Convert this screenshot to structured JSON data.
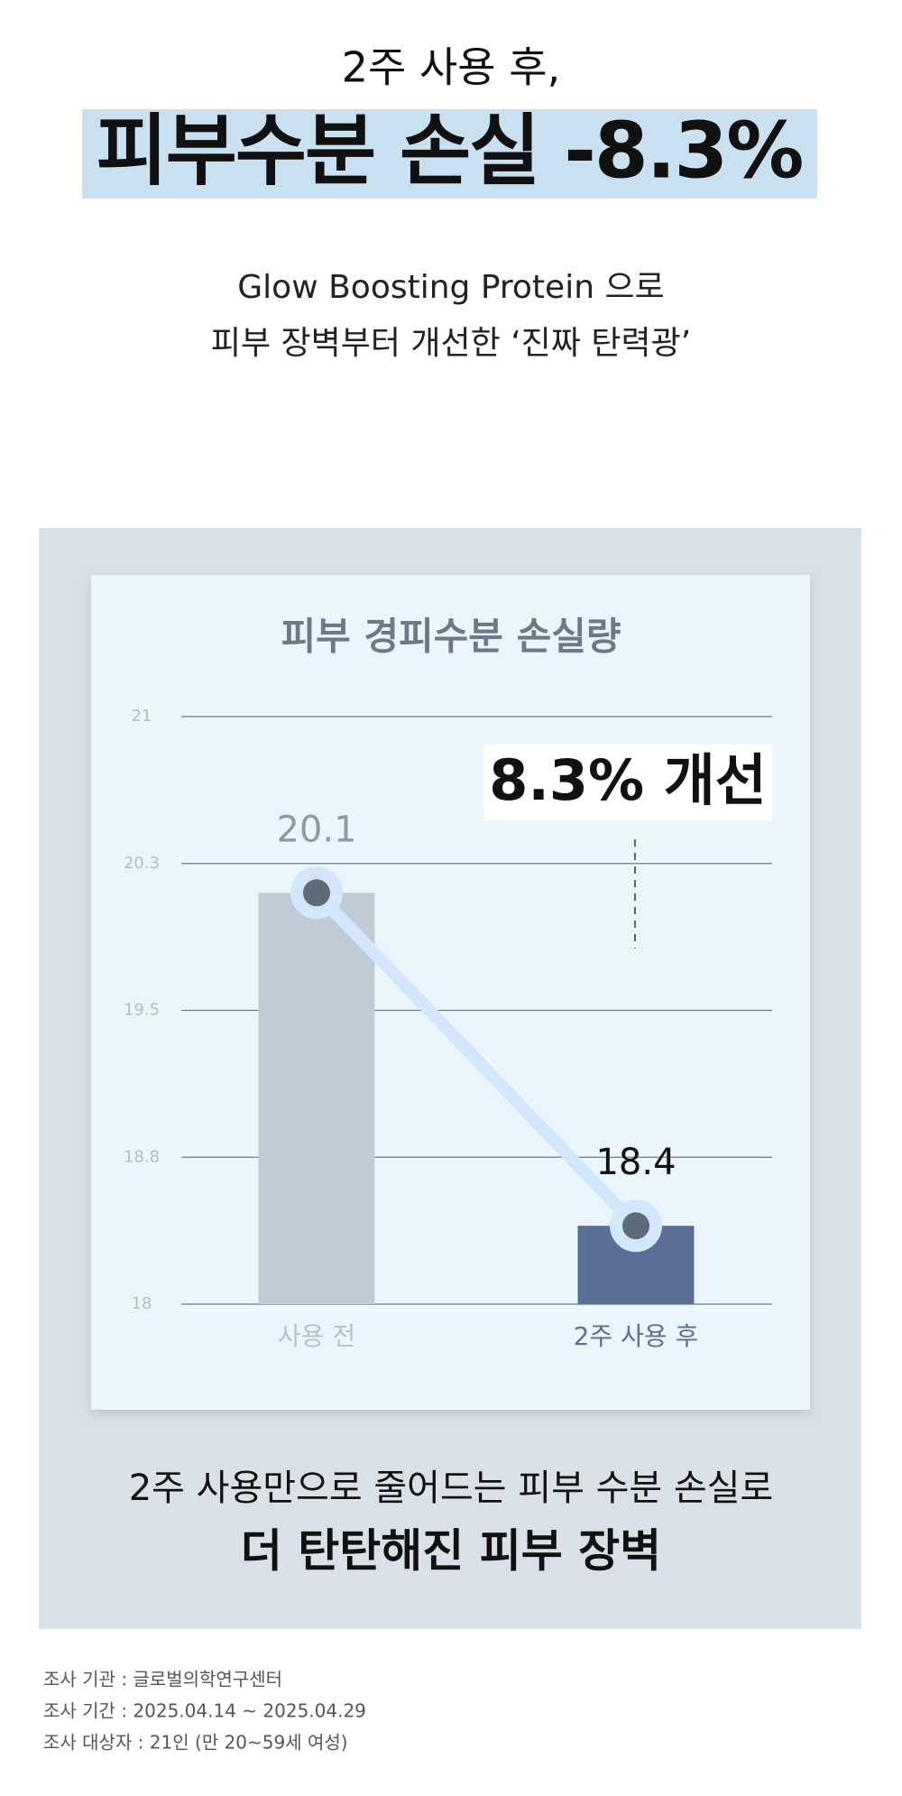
{
  "header": {
    "subtitle": "2주 사용 후,",
    "title": "피부수분 손실 -8.3%",
    "description": [
      "Glow Boosting Protein 으로",
      "피부 장벽부터 개선한 ‘진짜 탄력광’"
    ]
  },
  "chart_data": {
    "type": "bar",
    "title": "피부 경피수분 손실량",
    "categories": [
      "사용 전",
      "2주 사용 후"
    ],
    "values": [
      20.1,
      18.4
    ],
    "colors": [
      "#bfccd6",
      "#5a6e96"
    ],
    "ylim": [
      18,
      21
    ],
    "yticks": [
      18,
      {
        "value": 18.75,
        "label": "18.8"
      },
      19.5,
      {
        "value": 20.25,
        "label": "20.3"
      },
      21
    ],
    "grid": true,
    "annotation": "8.3% 개선",
    "connector_color": "#d4e6fb",
    "marker_color": "#5f6b78"
  },
  "summary": [
    "2주 사용만으로 줄어드는 피부 수분 손실로",
    "더 탄탄해진 피부 장벽"
  ],
  "footnotes": [
    "조사 기관 : 글로벌의학연구센터",
    "조사 기간 : 2025.04.14 ~ 2025.04.29",
    "조사 대상자 : 21인 (만 20~59세 여성)"
  ]
}
